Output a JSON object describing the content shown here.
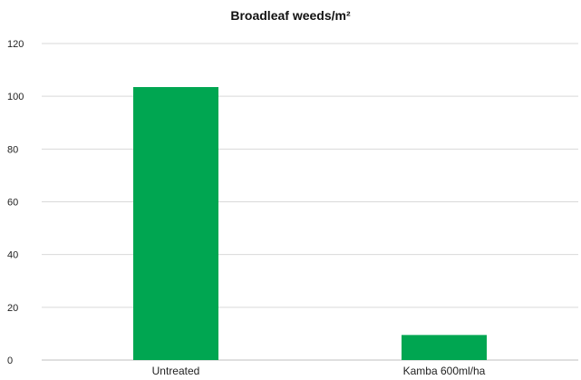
{
  "chart_data": {
    "type": "bar",
    "title": "Broadleaf weeds/m²",
    "categories": [
      "Untreated",
      "Kamba 600ml/ha"
    ],
    "values": [
      103.5,
      9.5
    ],
    "ylim": [
      0,
      120
    ],
    "yticks": [
      0,
      20,
      40,
      60,
      80,
      100,
      120
    ],
    "xlabel": "",
    "ylabel": "",
    "grid": true,
    "legend": "none",
    "bar_color": "#00a651"
  }
}
